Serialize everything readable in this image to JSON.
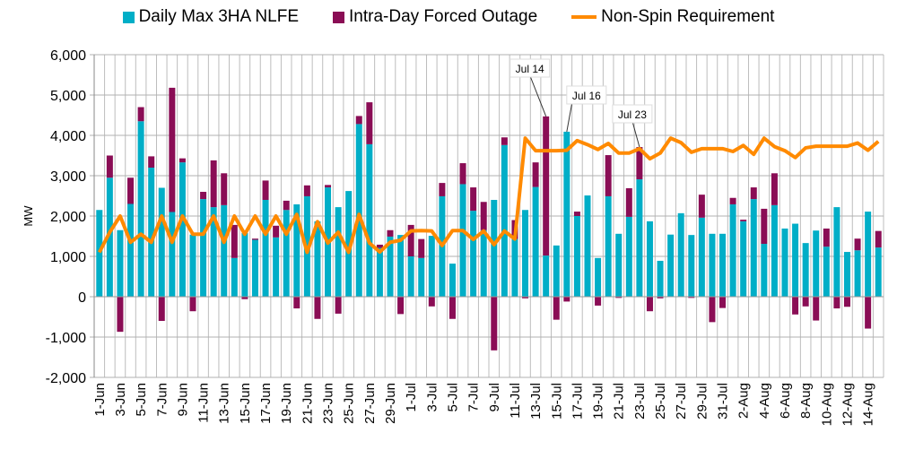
{
  "chart_data": {
    "type": "bar",
    "ylabel": "MW",
    "xlabel": "",
    "ylim": [
      -2000,
      6000
    ],
    "yticks": [
      -2000,
      -1000,
      0,
      1000,
      2000,
      3000,
      4000,
      5000,
      6000
    ],
    "grid": true,
    "legend_position": "top",
    "colors": {
      "nlfe": "#00AEC7",
      "outage": "#8A0D55",
      "nonspin": "#FF8A00"
    },
    "categories": [
      "1-Jun",
      "2-Jun",
      "3-Jun",
      "4-Jun",
      "5-Jun",
      "6-Jun",
      "7-Jun",
      "8-Jun",
      "9-Jun",
      "10-Jun",
      "11-Jun",
      "12-Jun",
      "13-Jun",
      "14-Jun",
      "15-Jun",
      "16-Jun",
      "17-Jun",
      "18-Jun",
      "19-Jun",
      "20-Jun",
      "21-Jun",
      "22-Jun",
      "23-Jun",
      "24-Jun",
      "25-Jun",
      "26-Jun",
      "27-Jun",
      "28-Jun",
      "29-Jun",
      "30-Jun",
      "1-Jul",
      "2-Jul",
      "3-Jul",
      "4-Jul",
      "5-Jul",
      "6-Jul",
      "7-Jul",
      "8-Jul",
      "9-Jul",
      "10-Jul",
      "11-Jul",
      "12-Jul",
      "13-Jul",
      "14-Jul",
      "15-Jul",
      "16-Jul",
      "17-Jul",
      "18-Jul",
      "19-Jul",
      "20-Jul",
      "21-Jul",
      "22-Jul",
      "23-Jul",
      "24-Jul",
      "25-Jul",
      "26-Jul",
      "27-Jul",
      "28-Jul",
      "29-Jul",
      "30-Jul",
      "31-Jul",
      "1-Aug",
      "2-Aug",
      "3-Aug",
      "4-Aug",
      "5-Aug",
      "6-Aug",
      "7-Aug",
      "8-Aug",
      "9-Aug",
      "10-Aug",
      "11-Aug",
      "12-Aug",
      "13-Aug",
      "14-Aug",
      "15-Aug"
    ],
    "tick_labels": [
      "1-Jun",
      "3-Jun",
      "5-Jun",
      "7-Jun",
      "9-Jun",
      "11-Jun",
      "13-Jun",
      "15-Jun",
      "17-Jun",
      "19-Jun",
      "21-Jun",
      "23-Jun",
      "25-Jun",
      "27-Jun",
      "29-Jun",
      "1-Jul",
      "3-Jul",
      "5-Jul",
      "7-Jul",
      "9-Jul",
      "11-Jul",
      "13-Jul",
      "15-Jul",
      "17-Jul",
      "19-Jul",
      "21-Jul",
      "23-Jul",
      "25-Jul",
      "27-Jul",
      "29-Jul",
      "31-Jul",
      "2-Aug",
      "4-Aug",
      "6-Aug",
      "8-Aug",
      "10-Aug",
      "12-Aug",
      "14-Aug"
    ],
    "series": [
      {
        "name": "Daily Max 3HA NLFE",
        "kind": "stacked-bar",
        "values": [
          2150,
          2950,
          1650,
          2300,
          4350,
          3200,
          2700,
          2100,
          3330,
          1540,
          2420,
          2220,
          2270,
          960,
          1580,
          1410,
          2400,
          1470,
          2150,
          2290,
          2490,
          1870,
          2710,
          2220,
          2620,
          4280,
          3780,
          1210,
          1490,
          1530,
          1000,
          960,
          1510,
          2490,
          820,
          2790,
          2130,
          1650,
          2400,
          3760,
          1430,
          2150,
          2720,
          1020,
          1270,
          4090,
          2000,
          2510,
          960,
          2490,
          1560,
          1980,
          2910,
          1870,
          890,
          1540,
          2070,
          1530,
          1960,
          1560,
          1560,
          2290,
          1870,
          2420,
          1310,
          2270,
          1690,
          1810,
          1330,
          1640,
          1240,
          2220,
          1110,
          1150,
          2110,
          1220
        ]
      },
      {
        "name": "Intra-Day Forced Outage",
        "kind": "stacked-bar",
        "values": [
          0,
          550,
          -870,
          650,
          350,
          280,
          -600,
          3080,
          100,
          -360,
          180,
          1160,
          790,
          820,
          -60,
          30,
          480,
          290,
          230,
          -290,
          270,
          -550,
          60,
          -420,
          0,
          200,
          1040,
          80,
          160,
          -430,
          780,
          470,
          -240,
          330,
          -550,
          520,
          580,
          700,
          -1330,
          190,
          470,
          -40,
          610,
          3450,
          -570,
          -120,
          110,
          0,
          -220,
          1020,
          -30,
          710,
          800,
          -360,
          -40,
          0,
          0,
          -30,
          570,
          -630,
          -280,
          160,
          40,
          290,
          870,
          790,
          0,
          -440,
          -240,
          -590,
          450,
          -290,
          -250,
          290,
          -790,
          410
        ]
      },
      {
        "name": "Non-Spin Requirement",
        "kind": "line",
        "values": [
          1100,
          1600,
          2000,
          1350,
          1550,
          1350,
          2000,
          1350,
          2000,
          1550,
          1550,
          2000,
          1350,
          2000,
          1550,
          2000,
          1550,
          2000,
          1550,
          2040,
          1100,
          1860,
          1330,
          1600,
          1100,
          2040,
          1330,
          1110,
          1350,
          1400,
          1630,
          1640,
          1630,
          1270,
          1640,
          1640,
          1420,
          1630,
          1290,
          1630,
          1430,
          3930,
          3620,
          3620,
          3620,
          3630,
          3870,
          3770,
          3650,
          3800,
          3560,
          3560,
          3670,
          3420,
          3560,
          3930,
          3820,
          3580,
          3670,
          3670,
          3670,
          3600,
          3750,
          3530,
          3930,
          3720,
          3620,
          3450,
          3690,
          3730,
          3730,
          3730,
          3730,
          3810,
          3630,
          3850
        ]
      }
    ],
    "annotations": [
      {
        "text": "Jul 14",
        "target": "14-Jul"
      },
      {
        "text": "Jul 16",
        "target": "16-Jul"
      },
      {
        "text": "Jul 23",
        "target": "23-Jul"
      }
    ]
  }
}
